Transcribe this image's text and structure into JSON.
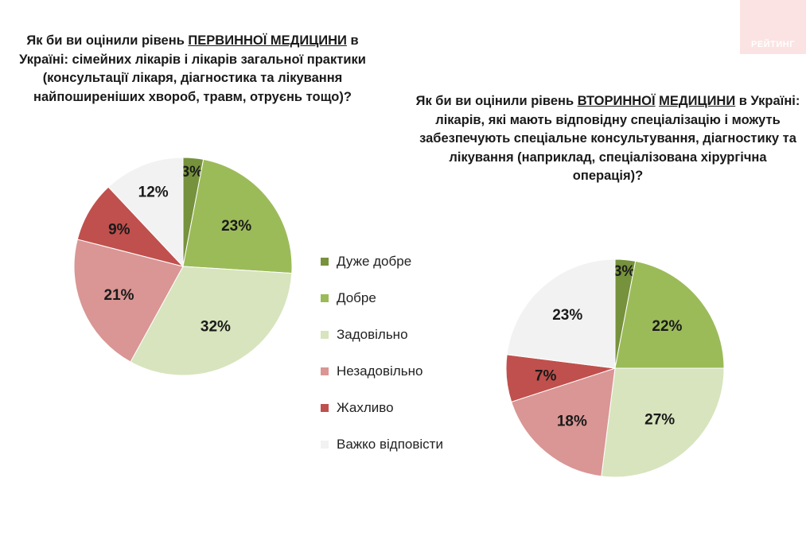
{
  "watermark": "РЕЙТИНГ",
  "colors": {
    "very_good": "#76923c",
    "good": "#9bbb59",
    "satisfactory": "#d7e4bd",
    "unsatisfactory": "#d99694",
    "terrible": "#c0504d",
    "hard_to_say": "#f2f2f2"
  },
  "legend": [
    {
      "label": "Дуже добре",
      "color": "#76923c"
    },
    {
      "label": "Добре",
      "color": "#9bbb59"
    },
    {
      "label": "Задовільно",
      "color": "#d7e4bd"
    },
    {
      "label": "Незадовільно",
      "color": "#d99694"
    },
    {
      "label": "Жахливо",
      "color": "#c0504d"
    },
    {
      "label": "Важко відповісти",
      "color": "#f2f2f2"
    }
  ],
  "chart_data": [
    {
      "type": "pie",
      "title_parts": {
        "before": "Як би ви оцінили рівень ",
        "emph": "ПЕРВИННОЇ МЕДИЦИНИ",
        "after": " в Україні: сімейних лікарів і лікарів загальної практики (консультації лікаря, діагностика та лікування найпоширеніших хвороб, травм, отруєнь тощо)?"
      },
      "categories": [
        "Дуже добре",
        "Добре",
        "Задовільно",
        "Незадовільно",
        "Жахливо",
        "Важко відповісти"
      ],
      "values": [
        3,
        23,
        32,
        21,
        9,
        12
      ],
      "labels": [
        "3%",
        "23%",
        "32%",
        "21%",
        "9%",
        "12%"
      ]
    },
    {
      "type": "pie",
      "title_parts": {
        "before": "Як би ви оцінили рівень ",
        "emph1": "ВТОРИННОЇ",
        "sep": " ",
        "emph2": "МЕДИЦИНИ",
        "after": " в Україні: лікарів, які мають відповідну спеціалізацію і можуть забезпечують спеціальне консультування, діагностику та лікування (наприклад, спеціалізована хірургічна операція)?"
      },
      "categories": [
        "Дуже добре",
        "Добре",
        "Задовільно",
        "Незадовільно",
        "Жахливо",
        "Важко відповісти"
      ],
      "values": [
        3,
        22,
        27,
        18,
        7,
        23
      ],
      "labels": [
        "3%",
        "22%",
        "27%",
        "18%",
        "7%",
        "23%"
      ]
    }
  ]
}
